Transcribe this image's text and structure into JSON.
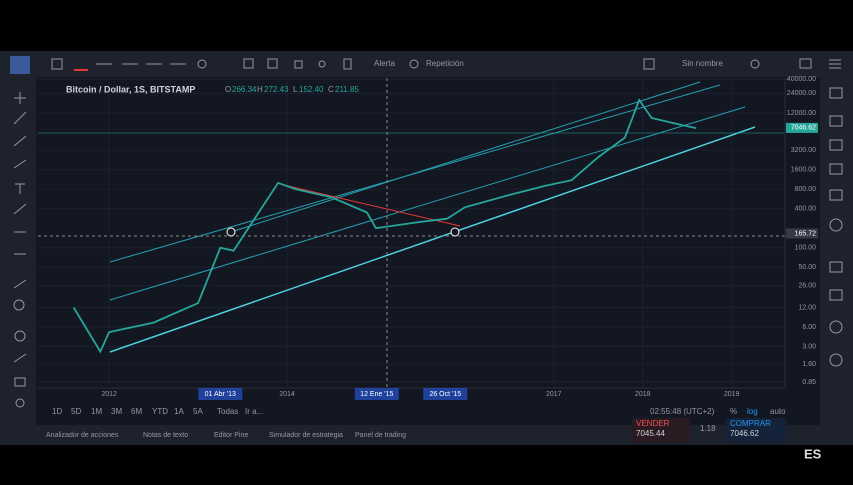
{
  "toolbar": {
    "alert": "Alerta",
    "replay": "Repetición",
    "layout_name": "Sin nombre"
  },
  "symbol": {
    "name": "Bitcoin / Dollar, 1S, BITSTAMP",
    "open_label": "O",
    "open": "266.34",
    "high_label": "H",
    "high": "272.43",
    "low_label": "L",
    "low": "152.40",
    "close_label": "C",
    "close": "211.85"
  },
  "chart_data": {
    "type": "line",
    "x": [
      2011.6,
      2011.9,
      2012.0,
      2012.5,
      2013.0,
      2013.25,
      2013.4,
      2013.9,
      2014.1,
      2014.5,
      2014.9,
      2015.0,
      2015.5,
      2015.8,
      2016.0,
      2016.5,
      2016.9,
      2017.2,
      2017.5,
      2017.8,
      2017.96,
      2018.1,
      2018.4,
      2018.6
    ],
    "values": [
      12,
      2.5,
      5,
      7,
      14,
      100,
      90,
      1000,
      800,
      600,
      350,
      200,
      250,
      280,
      420,
      650,
      900,
      1100,
      2500,
      5000,
      19000,
      10000,
      8000,
      7000
    ],
    "color": "#26a69a",
    "xlim": [
      2011.2,
      2019.6
    ],
    "xticks": [
      2012,
      2014,
      2017,
      2018,
      2019
    ],
    "x_markers": [
      {
        "value": 2013.25,
        "label": "01 Abr '13"
      },
      {
        "value": 2015.01,
        "label": "12 Ene '15"
      },
      {
        "value": 2015.78,
        "label": "26 Oct '15"
      }
    ],
    "ylim": [
      0.85,
      40000
    ],
    "log": true,
    "yticks": [
      {
        "value": 40000,
        "label": "40000.00"
      },
      {
        "value": 24000,
        "label": "24000.00"
      },
      {
        "value": 12000,
        "label": "12000.00"
      },
      {
        "value": 3200,
        "label": "3200.00"
      },
      {
        "value": 1600,
        "label": "1600.00"
      },
      {
        "value": 800,
        "label": "800.00"
      },
      {
        "value": 400,
        "label": "400.00"
      },
      {
        "value": 100,
        "label": "100.00"
      },
      {
        "value": 50,
        "label": "50.00"
      },
      {
        "value": 26,
        "label": "26.00"
      },
      {
        "value": 12,
        "label": "12.00"
      },
      {
        "value": 6,
        "label": "6.00"
      },
      {
        "value": 3,
        "label": "3.00"
      },
      {
        "value": 1.6,
        "label": "1.60"
      },
      {
        "value": 0.85,
        "label": "0.85"
      }
    ],
    "price_labels": [
      7046.62,
      165.72
    ]
  },
  "bottom_bar": {
    "periods": [
      "1D",
      "5D",
      "1M",
      "3M",
      "6M",
      "YTD",
      "1A",
      "5A",
      "Todas"
    ],
    "goto": "Ir a...",
    "clock": "02:55:48 (UTC+2)",
    "percent": "%",
    "log": "log",
    "auto": "auto"
  },
  "tabs": [
    "Analizador de acciones",
    "Notas de texto",
    "Editor Pine",
    "Simulador de estrategia",
    "Panel de trading"
  ],
  "trade": {
    "sell_label": "VENDER",
    "sell_price": "7045.44",
    "spread": "1.18",
    "buy_label": "COMPRAR",
    "buy_price": "7046.62"
  },
  "language": "ES"
}
